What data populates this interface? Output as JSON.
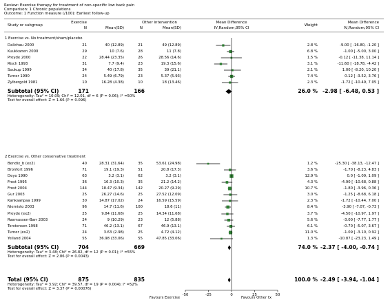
{
  "header": {
    "review": "Review:  Exercise therapy for treatment of non-specific low back pain",
    "comparison": "Comparison:  1 Chronic populations",
    "outcome": "Outcome:  1 Function measure (/100): Earliest follow-up"
  },
  "columns": {
    "study": "Study or subgroup",
    "exercise": "Exercise",
    "n": "N",
    "mean_sd": "Mean(SD)",
    "other": "Other intervention",
    "md": "Mean Difference",
    "md_sub": "IV,Random,95% CI",
    "weight": "Weight",
    "md2": "Mean Difference",
    "md2_sub": "IV,Random,95% CI"
  },
  "groups": [
    {
      "title": "1 Exercise vs. No treatment/sham/placebo",
      "studies": [
        {
          "name": "Dalichau 2000",
          "n1": "21",
          "ms1": "40 (12.89)",
          "n2": "21",
          "ms2": "49 (12.89)",
          "weight": "2.8 %",
          "ci": "-9.00 [ -16.80, -1.20 ]",
          "md": -9.0,
          "lo": -16.8,
          "hi": -1.2,
          "w": 2.8
        },
        {
          "name": "Kuukkanen 2000",
          "n1": "29",
          "ms1": "10 (7.6)",
          "n2": "28",
          "ms2": "11 (7.8)",
          "weight": "6.8 %",
          "ci": "-1.00 [ -5.00, 3.00 ]",
          "md": -1.0,
          "lo": -5.0,
          "hi": 3.0,
          "w": 6.8
        },
        {
          "name": "Preyde 2000",
          "n1": "22",
          "ms1": "28.44 (23.35)",
          "n2": "26",
          "ms2": "28.56 (14.6)",
          "weight": "1.5 %",
          "ci": "-0.12 [ -11.38, 11.14 ]",
          "md": -0.12,
          "lo": -11.38,
          "hi": 11.14,
          "w": 1.5
        },
        {
          "name": "Risch 1993",
          "n1": "31",
          "ms1": "7.7 (9.4)",
          "n2": "23",
          "ms2": "19.3 (15.6)",
          "weight": "3.1 %",
          "ci": "-11.60 [ -18.78, -4.42 ]",
          "md": -11.6,
          "lo": -18.78,
          "hi": -4.42,
          "w": 3.1
        },
        {
          "name": "Soukup 1999",
          "n1": "34",
          "ms1": "40 (17.8)",
          "n2": "35",
          "ms2": "39 (21.1)",
          "weight": "2.1 %",
          "ci": "1.00 [ -8.20, 10.20 ]",
          "md": 1.0,
          "lo": -8.2,
          "hi": 10.2,
          "w": 2.1
        },
        {
          "name": "Turner 1990",
          "n1": "24",
          "ms1": "5.49 (6.79)",
          "n2": "23",
          "ms2": "5.37 (5.93)",
          "weight": "7.4 %",
          "ci": "0.12 [ -3.52, 3.76 ]",
          "md": 0.12,
          "lo": -3.52,
          "hi": 3.76,
          "w": 7.4
        },
        {
          "name": "Zylbergold 1981",
          "n1": "10",
          "ms1": "16.28 (4.38)",
          "n2": "10",
          "ms2": "18 (13.46)",
          "weight": "2.3 %",
          "ci": "-1.72 [ -10.49, 7.05 ]",
          "md": -1.72,
          "lo": -10.49,
          "hi": 7.05,
          "w": 2.3
        }
      ],
      "subtotal": {
        "label": "Subtotal (95% CI)",
        "n1": "171",
        "n2": "166",
        "weight": "26.0 %",
        "ci": "-2.98 [ -6.48, 0.53 ]",
        "md": -2.98,
        "lo": -6.48,
        "hi": 0.53
      },
      "het": "Heterogeneity: Tau² = 10.09; Chi² = 12.01, df = 6 (P = 0.06); I² =50%",
      "test": "Test for overall effect: Z = 1.66 (P = 0.096)"
    },
    {
      "title": "2 Exercise vs. Other conservative treatment",
      "studies": [
        {
          "name": "Bendix_b (ex2)",
          "n1": "40",
          "ms1": "28.31 (31.64)",
          "n2": "35",
          "ms2": "53.61 (24.98)",
          "weight": "1.2 %",
          "ci": "-25.30 [ -38.13, -12.47 ]",
          "md": -25.3,
          "lo": -38.13,
          "hi": -12.47,
          "w": 1.2
        },
        {
          "name": "Bronfort 1996",
          "n1": "71",
          "ms1": "19.1 (19.3)",
          "n2": "51",
          "ms2": "20.8 (17.3)",
          "weight": "3.6 %",
          "ci": "-1.70 [ -8.23, 4.83 ]",
          "md": -1.7,
          "lo": -8.23,
          "hi": 4.83,
          "w": 3.6
        },
        {
          "name": "Deyo 1990",
          "n1": "63",
          "ms1": "3.2 (3.1)",
          "n2": "62",
          "ms2": "3.2 (3.1)",
          "weight": "12.9 %",
          "ci": "0.0 [ -1.09, 1.09 ]",
          "md": 0.0,
          "lo": -1.09,
          "hi": 1.09,
          "w": 12.9
        },
        {
          "name": "Frost 1995",
          "n1": "36",
          "ms1": "16.3 (10.3)",
          "n2": "35",
          "ms2": "21.2 (14.2)",
          "weight": "4.3 %",
          "ci": "-4.90 [ -10.68, 0.88 ]",
          "md": -4.9,
          "lo": -10.68,
          "hi": 0.88,
          "w": 4.3
        },
        {
          "name": "Frost 2004",
          "n1": "144",
          "ms1": "18.47 (9.34)",
          "n2": "142",
          "ms2": "20.27 (9.29)",
          "weight": "10.7 %",
          "ci": "-1.80 [ -3.96, 0.36 ]",
          "md": -1.8,
          "lo": -3.96,
          "hi": 0.36,
          "w": 10.7
        },
        {
          "name": "Gur 2003",
          "n1": "25",
          "ms1": "26.27 (14.6)",
          "n2": "25",
          "ms2": "27.52 (12.09)",
          "weight": "3.0 %",
          "ci": "-1.25 [ -8.68, 6.18 ]",
          "md": -1.25,
          "lo": -8.68,
          "hi": 6.18,
          "w": 3.0
        },
        {
          "name": "Kankaanpaa 1999",
          "n1": "30",
          "ms1": "14.87 (17.02)",
          "n2": "24",
          "ms2": "16.59 (15.59)",
          "weight": "2.3 %",
          "ci": "-1.72 [ -10.44, 7.00 ]",
          "md": -1.72,
          "lo": -10.44,
          "hi": 7.0,
          "w": 2.3
        },
        {
          "name": "Niemisto 2003",
          "n1": "96",
          "ms1": "14.7 (11.6)",
          "n2": "100",
          "ms2": "18.6 (11)",
          "weight": "8.4 %",
          "ci": "-3.90 [ -7.07, -0.73 ]",
          "md": -3.9,
          "lo": -7.07,
          "hi": -0.73,
          "w": 8.4
        },
        {
          "name": "Preyde (ex2)",
          "n1": "25",
          "ms1": "9.84 (11.68)",
          "n2": "25",
          "ms2": "14.34 (11.68)",
          "weight": "3.7 %",
          "ci": "-4.50 [ -10.97, 1.97 ]",
          "md": -4.5,
          "lo": -10.97,
          "hi": 1.97,
          "w": 3.7
        },
        {
          "name": "Rasmussen-Barr 2003",
          "n1": "24",
          "ms1": "9 (10.29)",
          "n2": "23",
          "ms2": "12 (5.88)",
          "weight": "5.6 %",
          "ci": "-3.00 [ -7.77, 1.77 ]",
          "md": -3.0,
          "lo": -7.77,
          "hi": 1.77,
          "w": 5.6
        },
        {
          "name": "Torstensen 1998",
          "n1": "71",
          "ms1": "46.2 (13.1)",
          "n2": "67",
          "ms2": "46.9 (13.1)",
          "weight": "6.1 %",
          "ci": "-0.70 [ -5.07, 3.67 ]",
          "md": -0.7,
          "lo": -5.07,
          "hi": 3.67,
          "w": 6.1
        },
        {
          "name": "Turner (ex2)",
          "n1": "24",
          "ms1": "3.63 (2.98)",
          "n2": "25",
          "ms2": "4.72 (4.12)",
          "weight": "11.0 %",
          "ci": "-1.09 [ -3.10, 0.92 ]",
          "md": -1.09,
          "lo": -3.1,
          "hi": 0.92,
          "w": 11.0
        },
        {
          "name": "Yelland 2004",
          "n1": "55",
          "ms1": "36.98 (33.06)",
          "n2": "55",
          "ms2": "47.85 (33.06)",
          "weight": "1.3 %",
          "ci": "-10.87 [ -23.23, 1.49 ]",
          "md": -10.87,
          "lo": -23.23,
          "hi": 1.49,
          "w": 1.3
        }
      ],
      "subtotal": {
        "label": "Subtotal (95% CI)",
        "n1": "704",
        "n2": "669",
        "weight": "74.0 %",
        "ci": "-2.37 [ -4.00, -0.74 ]",
        "md": -2.37,
        "lo": -4.0,
        "hi": -0.74
      },
      "het": "Heterogeneity: Tau² = 3.48; Chi² = 26.82, df = 12 (P = 0.01); I² =55%",
      "test": "Test for overall effect: Z = 2.86 (P = 0.0043)"
    }
  ],
  "total": {
    "label": "Total (95% CI)",
    "n1": "875",
    "n2": "835",
    "weight": "100.0 %",
    "ci": "-2.49 [ -3.94, -1.04 ]",
    "md": -2.49,
    "lo": -3.94,
    "hi": -1.04,
    "het": "Heterogeneity: Tau² = 3.92; Chi² = 39.57, df = 19 (P = 0.004); I² =52%",
    "test": "Test for overall effect: Z = 3.37 (P = 0.00076)"
  },
  "footer": {
    "favours_left": "Favours Exercise",
    "favours_right": "Favours Other tx"
  },
  "chart_data": {
    "type": "forest",
    "xlim": [
      -50,
      50
    ],
    "ticks": [
      -50,
      -25,
      0,
      25,
      50
    ],
    "tick_labels": [
      "-50",
      "-25",
      "0",
      "25",
      "50"
    ],
    "colors": {
      "study_marker": "#2e7d32",
      "ci_line": "#000000",
      "summary": "#000000"
    }
  }
}
